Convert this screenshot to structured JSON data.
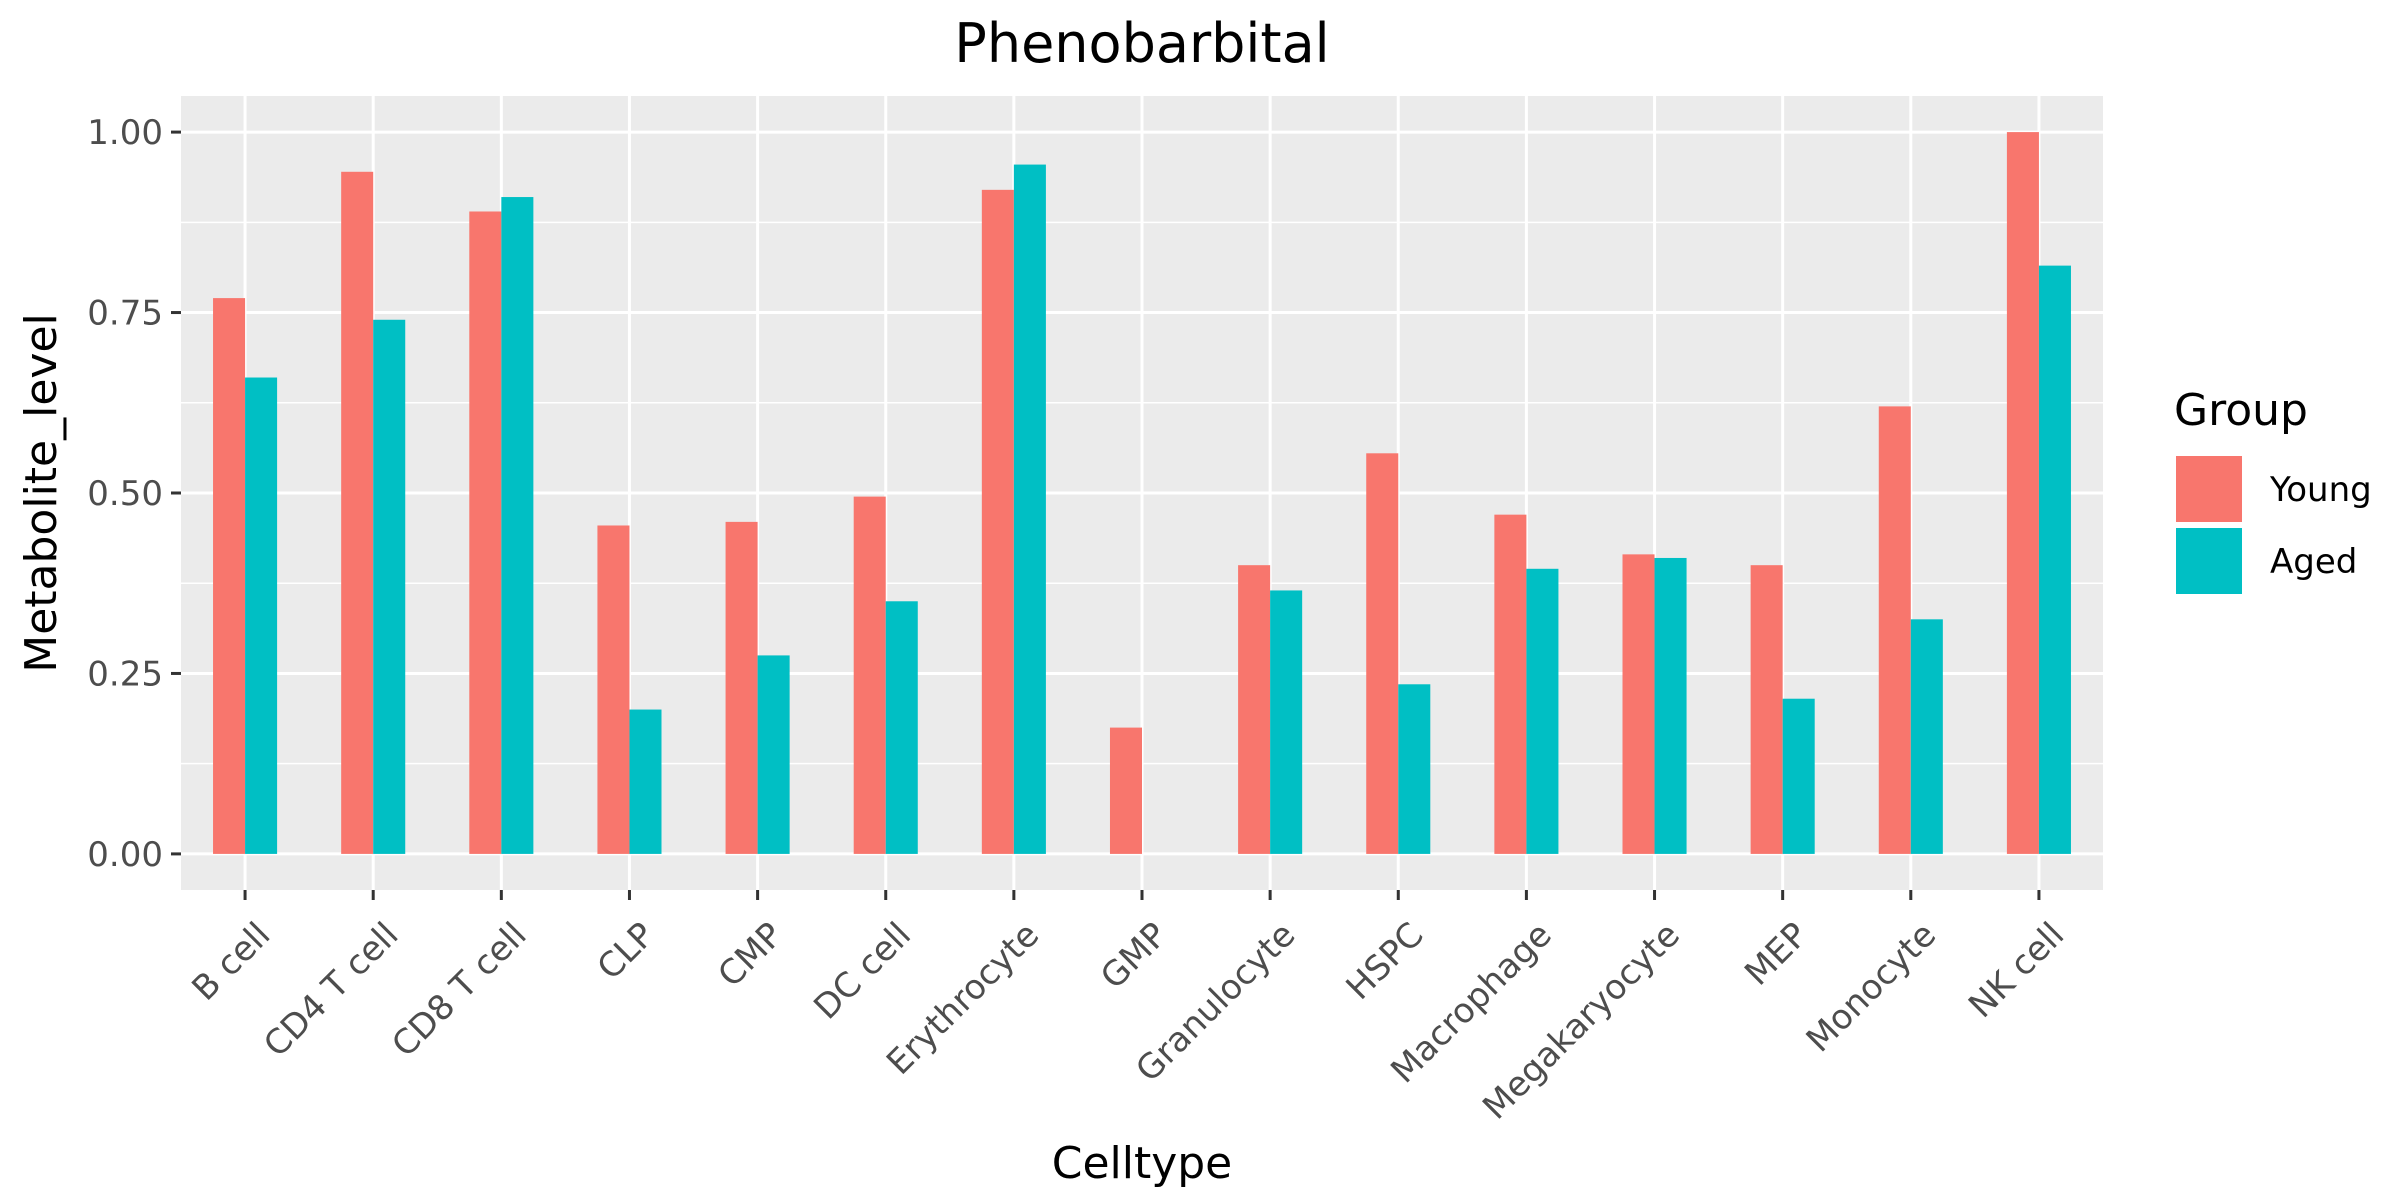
{
  "chart_data": {
    "type": "bar",
    "title": "Phenobarbital",
    "xlabel": "Celltype",
    "ylabel": "Metabolite_level",
    "ylim": [
      -0.05,
      1.05
    ],
    "yticks": [
      0,
      0.25,
      0.5,
      0.75,
      1.0
    ],
    "ytick_labels": [
      "0.00",
      "0.25",
      "0.50",
      "0.75",
      "1.00"
    ],
    "grid": true,
    "legend": {
      "title": "Group",
      "position": "right"
    },
    "categories": [
      "B cell",
      "CD4 T cell",
      "CD8 T cell",
      "CLP",
      "CMP",
      "DC cell",
      "Erythrocyte",
      "GMP",
      "Granulocyte",
      "HSPC",
      "Macrophage",
      "Megakaryocyte",
      "MEP",
      "Monocyte",
      "NK cell"
    ],
    "series": [
      {
        "name": "Young",
        "color": "#F8766D",
        "values": [
          0.77,
          0.945,
          0.89,
          0.455,
          0.46,
          0.495,
          0.92,
          0.175,
          0.4,
          0.555,
          0.47,
          0.415,
          0.4,
          0.62,
          1.0
        ]
      },
      {
        "name": "Aged",
        "color": "#00BFC4",
        "values": [
          0.66,
          0.74,
          0.91,
          0.2,
          0.275,
          0.35,
          0.955,
          0.0,
          0.365,
          0.235,
          0.395,
          0.41,
          0.215,
          0.325,
          0.815
        ]
      }
    ]
  }
}
